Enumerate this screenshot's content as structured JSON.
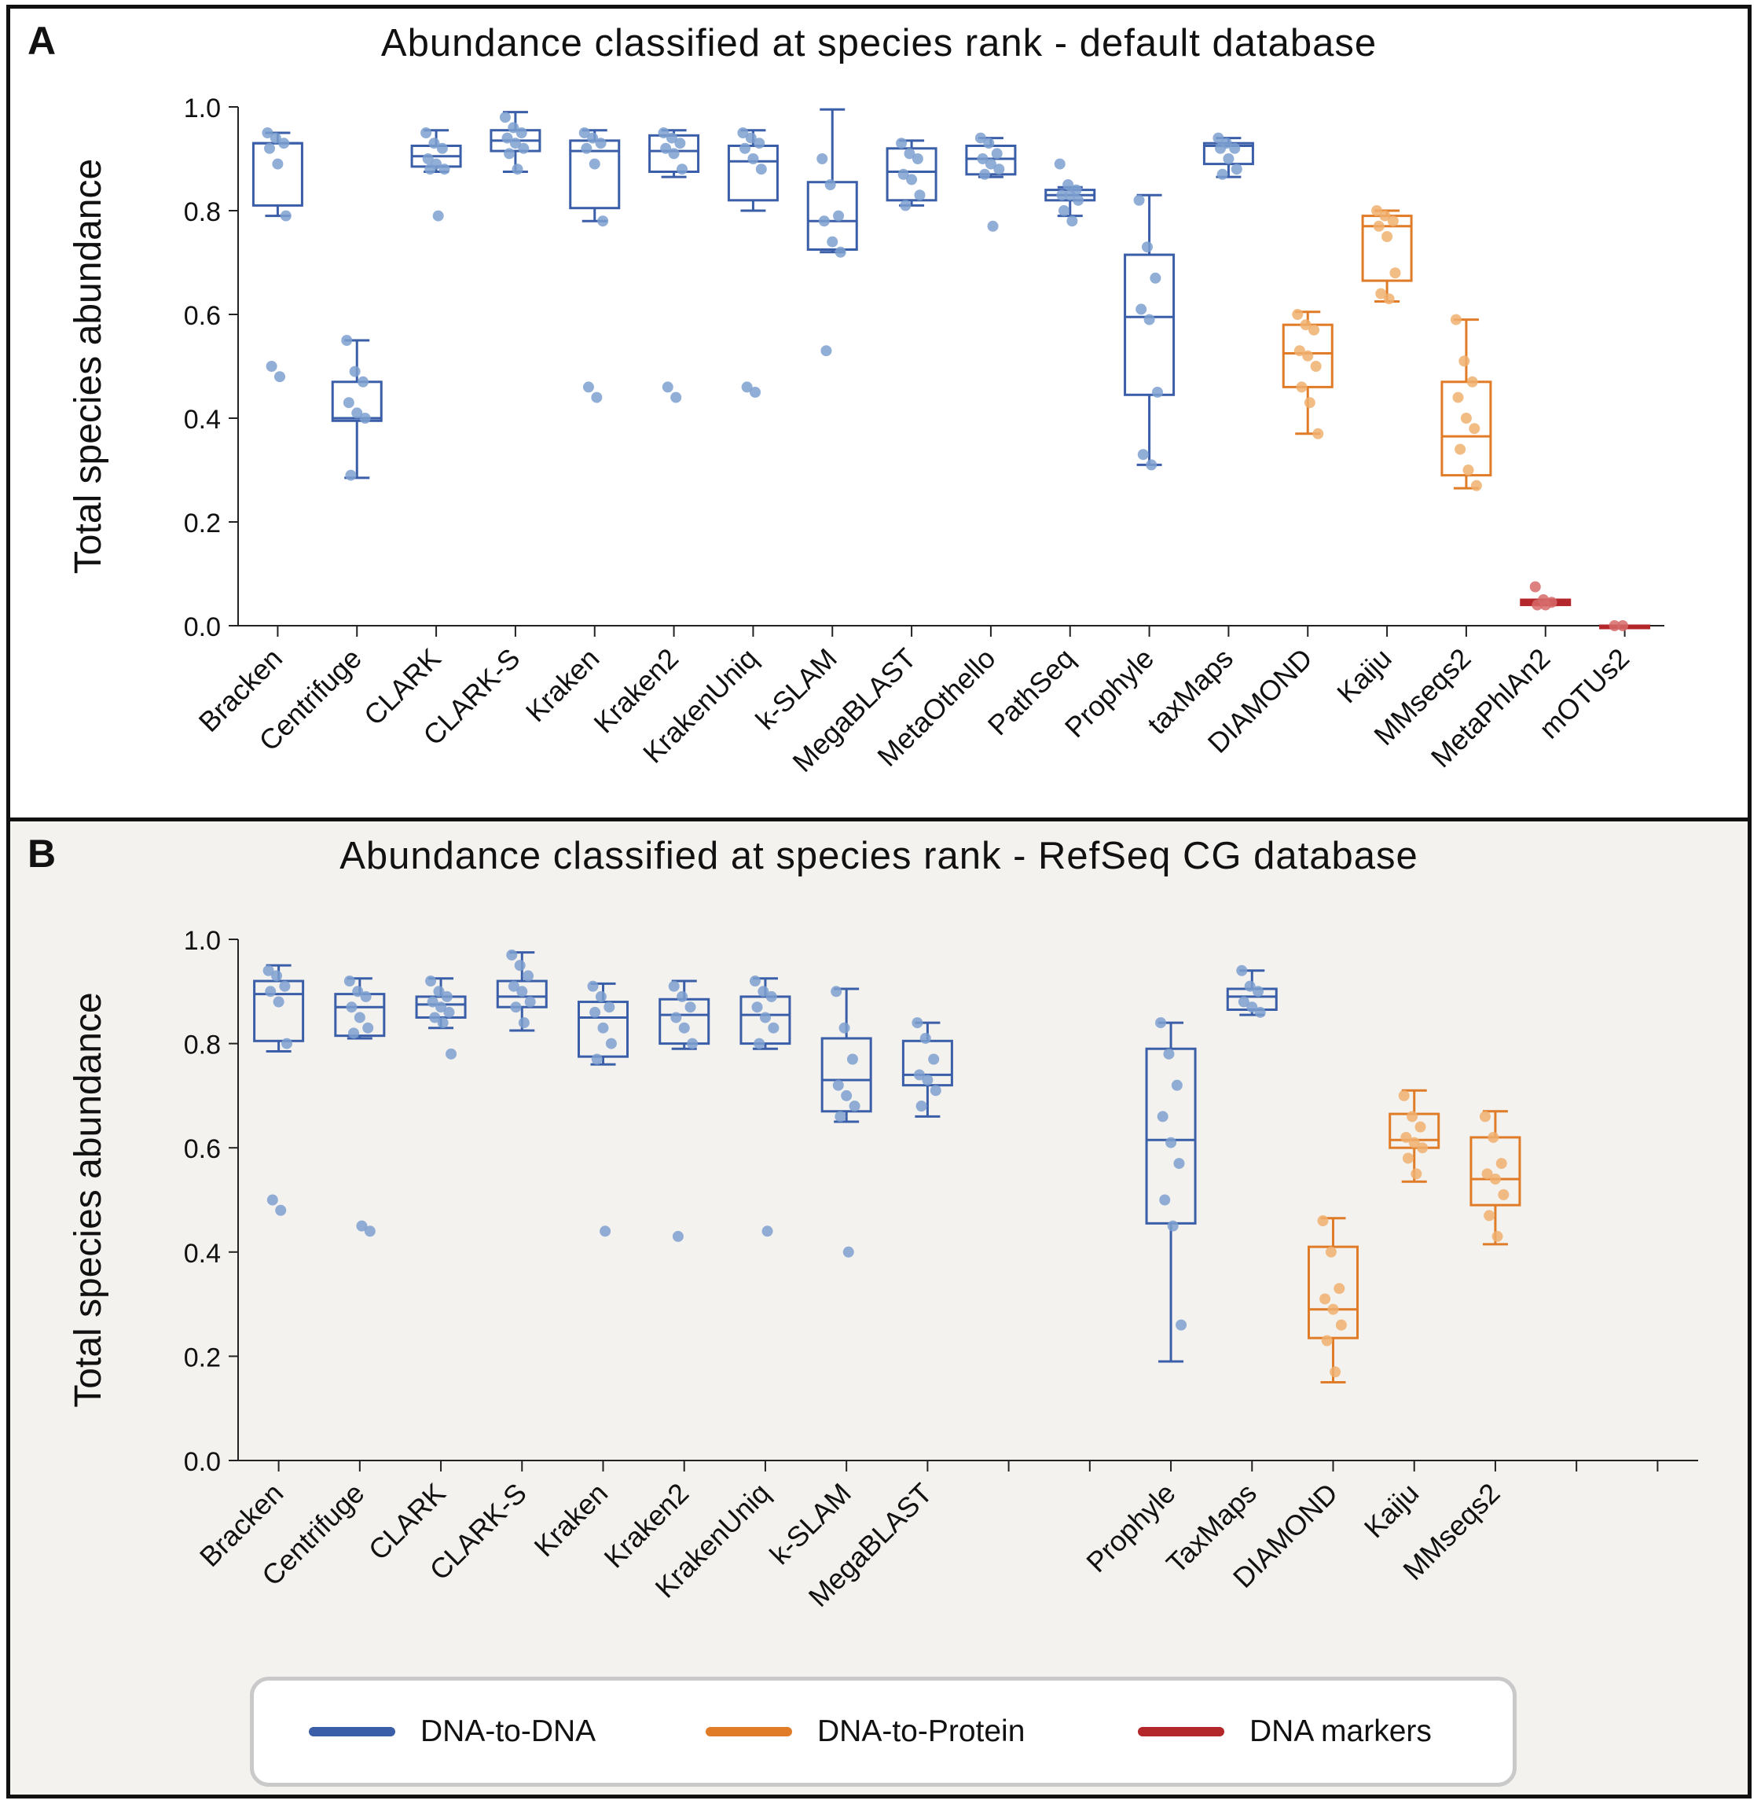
{
  "panel_a": {
    "letter": "A",
    "title": "Abundance classified at species rank - default database"
  },
  "panel_b": {
    "letter": "B",
    "title": "Abundance classified at species rank - RefSeq CG database"
  },
  "legend": {
    "items": [
      {
        "label": "DNA-to-DNA",
        "color": "#3a5ea8"
      },
      {
        "label": "DNA-to-Protein",
        "color": "#e07b27"
      },
      {
        "label": "DNA markers",
        "color": "#b3262a"
      }
    ]
  },
  "colors": {
    "dna": "#3a5ea8",
    "protein": "#e07b27",
    "markers": "#b3262a",
    "dna_points": "#7ea0d0",
    "protein_points": "#f0b070",
    "markers_points": "#d66a6a"
  },
  "chart_data": [
    {
      "type": "box",
      "title": "Abundance classified at species rank - default database",
      "ylabel": "Total species abundance",
      "ylim": [
        0,
        1.0
      ],
      "yticks": [
        "0.0",
        "0.2",
        "0.4",
        "0.6",
        "0.8",
        "1.0"
      ],
      "categories": [
        "Bracken",
        "Centrifuge",
        "CLARK",
        "CLARK-S",
        "Kraken",
        "Kraken2",
        "KrakenUniq",
        "k-SLAM",
        "MegaBLAST",
        "MetaOthello",
        "PathSeq",
        "Prophyle",
        "taxMaps",
        "DIAMOND",
        "Kaiju",
        "MMseqs2",
        "MetaPhlAn2",
        "mOTUs2"
      ],
      "groups": [
        "dna",
        "dna",
        "dna",
        "dna",
        "dna",
        "dna",
        "dna",
        "dna",
        "dna",
        "dna",
        "dna",
        "dna",
        "dna",
        "protein",
        "protein",
        "protein",
        "markers",
        "markers"
      ],
      "boxes": [
        {
          "whislo": 0.79,
          "q1": 0.81,
          "med": 0.93,
          "q3": 0.93,
          "whishi": 0.95
        },
        {
          "whislo": 0.285,
          "q1": 0.395,
          "med": 0.4,
          "q3": 0.47,
          "whishi": 0.55
        },
        {
          "whislo": 0.875,
          "q1": 0.885,
          "med": 0.905,
          "q3": 0.925,
          "whishi": 0.955
        },
        {
          "whislo": 0.875,
          "q1": 0.915,
          "med": 0.935,
          "q3": 0.955,
          "whishi": 0.99
        },
        {
          "whislo": 0.78,
          "q1": 0.805,
          "med": 0.915,
          "q3": 0.935,
          "whishi": 0.955
        },
        {
          "whislo": 0.865,
          "q1": 0.875,
          "med": 0.915,
          "q3": 0.945,
          "whishi": 0.955
        },
        {
          "whislo": 0.8,
          "q1": 0.82,
          "med": 0.895,
          "q3": 0.925,
          "whishi": 0.955
        },
        {
          "whislo": 0.72,
          "q1": 0.725,
          "med": 0.78,
          "q3": 0.855,
          "whishi": 0.995
        },
        {
          "whislo": 0.81,
          "q1": 0.82,
          "med": 0.875,
          "q3": 0.92,
          "whishi": 0.935
        },
        {
          "whislo": 0.865,
          "q1": 0.87,
          "med": 0.9,
          "q3": 0.925,
          "whishi": 0.94
        },
        {
          "whislo": 0.79,
          "q1": 0.82,
          "med": 0.83,
          "q3": 0.84,
          "whishi": 0.845
        },
        {
          "whislo": 0.31,
          "q1": 0.445,
          "med": 0.595,
          "q3": 0.715,
          "whishi": 0.83
        },
        {
          "whislo": 0.865,
          "q1": 0.89,
          "med": 0.925,
          "q3": 0.93,
          "whishi": 0.94
        },
        {
          "whislo": 0.37,
          "q1": 0.46,
          "med": 0.525,
          "q3": 0.58,
          "whishi": 0.605
        },
        {
          "whislo": 0.625,
          "q1": 0.665,
          "med": 0.77,
          "q3": 0.79,
          "whishi": 0.8
        },
        {
          "whislo": 0.265,
          "q1": 0.29,
          "med": 0.365,
          "q3": 0.47,
          "whishi": 0.59
        },
        {
          "whislo": 0.04,
          "q1": 0.04,
          "med": 0.045,
          "q3": 0.05,
          "whishi": 0.05
        },
        {
          "whislo": 0.0,
          "q1": 0.0,
          "med": 0.0,
          "q3": 0.0,
          "whishi": 0.0
        }
      ],
      "points": [
        [
          0.95,
          0.94,
          0.93,
          0.92,
          0.89,
          0.79,
          0.5,
          0.48
        ],
        [
          0.55,
          0.49,
          0.47,
          0.43,
          0.41,
          0.4,
          0.29
        ],
        [
          0.95,
          0.93,
          0.92,
          0.9,
          0.89,
          0.88,
          0.88,
          0.79
        ],
        [
          0.98,
          0.96,
          0.95,
          0.94,
          0.93,
          0.92,
          0.91,
          0.88
        ],
        [
          0.95,
          0.94,
          0.93,
          0.92,
          0.89,
          0.78,
          0.46,
          0.44
        ],
        [
          0.95,
          0.94,
          0.93,
          0.92,
          0.91,
          0.88,
          0.46,
          0.44
        ],
        [
          0.95,
          0.94,
          0.93,
          0.92,
          0.9,
          0.88,
          0.46,
          0.45
        ],
        [
          0.9,
          0.85,
          0.79,
          0.78,
          0.74,
          0.72,
          0.53
        ],
        [
          0.93,
          0.91,
          0.9,
          0.87,
          0.86,
          0.83,
          0.81
        ],
        [
          0.94,
          0.93,
          0.91,
          0.9,
          0.89,
          0.88,
          0.87,
          0.77
        ],
        [
          0.89,
          0.85,
          0.84,
          0.83,
          0.83,
          0.82,
          0.8,
          0.78
        ],
        [
          0.82,
          0.73,
          0.67,
          0.61,
          0.59,
          0.45,
          0.33,
          0.31
        ],
        [
          0.94,
          0.93,
          0.92,
          0.92,
          0.9,
          0.88,
          0.87
        ],
        [
          0.6,
          0.58,
          0.57,
          0.53,
          0.52,
          0.5,
          0.46,
          0.43,
          0.37
        ],
        [
          0.8,
          0.79,
          0.78,
          0.77,
          0.75,
          0.68,
          0.64,
          0.63
        ],
        [
          0.59,
          0.51,
          0.47,
          0.44,
          0.4,
          0.38,
          0.34,
          0.3,
          0.27
        ],
        [
          0.075,
          0.05,
          0.045,
          0.04,
          0.04
        ],
        [
          0.0,
          0.0
        ]
      ]
    },
    {
      "type": "box",
      "title": "Abundance classified at species rank - RefSeq CG database",
      "ylabel": "Total species abundance",
      "ylim": [
        0,
        1.0
      ],
      "yticks": [
        "0.0",
        "0.2",
        "0.4",
        "0.6",
        "0.8",
        "1.0"
      ],
      "tick_count": 18,
      "categories": [
        "Bracken",
        "Centrifuge",
        "CLARK",
        "CLARK-S",
        "Kraken",
        "Kraken2",
        "KrakenUniq",
        "k-SLAM",
        "MegaBLAST",
        "",
        "",
        "Prophyle",
        "TaxMaps",
        "DIAMOND",
        "Kaiju",
        "MMseqs2",
        "",
        ""
      ],
      "groups": [
        "dna",
        "dna",
        "dna",
        "dna",
        "dna",
        "dna",
        "dna",
        "dna",
        "dna",
        "",
        "",
        "dna",
        "dna",
        "protein",
        "protein",
        "protein",
        "",
        ""
      ],
      "boxes": [
        {
          "whislo": 0.785,
          "q1": 0.805,
          "med": 0.895,
          "q3": 0.92,
          "whishi": 0.95
        },
        {
          "whislo": 0.81,
          "q1": 0.815,
          "med": 0.87,
          "q3": 0.895,
          "whishi": 0.925
        },
        {
          "whislo": 0.83,
          "q1": 0.85,
          "med": 0.875,
          "q3": 0.89,
          "whishi": 0.925
        },
        {
          "whislo": 0.825,
          "q1": 0.87,
          "med": 0.89,
          "q3": 0.92,
          "whishi": 0.975
        },
        {
          "whislo": 0.76,
          "q1": 0.775,
          "med": 0.85,
          "q3": 0.88,
          "whishi": 0.915
        },
        {
          "whislo": 0.79,
          "q1": 0.8,
          "med": 0.855,
          "q3": 0.885,
          "whishi": 0.92
        },
        {
          "whislo": 0.79,
          "q1": 0.8,
          "med": 0.855,
          "q3": 0.89,
          "whishi": 0.925
        },
        {
          "whislo": 0.65,
          "q1": 0.67,
          "med": 0.73,
          "q3": 0.81,
          "whishi": 0.905
        },
        {
          "whislo": 0.66,
          "q1": 0.72,
          "med": 0.74,
          "q3": 0.805,
          "whishi": 0.84
        },
        null,
        null,
        {
          "whislo": 0.19,
          "q1": 0.455,
          "med": 0.615,
          "q3": 0.79,
          "whishi": 0.84
        },
        {
          "whislo": 0.855,
          "q1": 0.865,
          "med": 0.89,
          "q3": 0.905,
          "whishi": 0.94
        },
        {
          "whislo": 0.15,
          "q1": 0.235,
          "med": 0.29,
          "q3": 0.41,
          "whishi": 0.465
        },
        {
          "whislo": 0.535,
          "q1": 0.6,
          "med": 0.615,
          "q3": 0.665,
          "whishi": 0.71
        },
        {
          "whislo": 0.415,
          "q1": 0.49,
          "med": 0.54,
          "q3": 0.62,
          "whishi": 0.67
        },
        null,
        null
      ],
      "points": [
        [
          0.94,
          0.93,
          0.91,
          0.9,
          0.88,
          0.8,
          0.5,
          0.48
        ],
        [
          0.92,
          0.9,
          0.89,
          0.87,
          0.85,
          0.83,
          0.82,
          0.45,
          0.44
        ],
        [
          0.92,
          0.9,
          0.89,
          0.88,
          0.87,
          0.86,
          0.85,
          0.84,
          0.78
        ],
        [
          0.97,
          0.95,
          0.93,
          0.91,
          0.9,
          0.88,
          0.87,
          0.84
        ],
        [
          0.91,
          0.89,
          0.87,
          0.86,
          0.83,
          0.8,
          0.77,
          0.44
        ],
        [
          0.91,
          0.89,
          0.87,
          0.85,
          0.83,
          0.8,
          0.43
        ],
        [
          0.92,
          0.9,
          0.89,
          0.87,
          0.85,
          0.83,
          0.8,
          0.44
        ],
        [
          0.9,
          0.83,
          0.77,
          0.72,
          0.7,
          0.68,
          0.66,
          0.4
        ],
        [
          0.84,
          0.81,
          0.77,
          0.74,
          0.73,
          0.71,
          0.68
        ],
        [],
        [],
        [
          0.84,
          0.78,
          0.72,
          0.66,
          0.61,
          0.57,
          0.5,
          0.45,
          0.26
        ],
        [
          0.94,
          0.91,
          0.9,
          0.88,
          0.87,
          0.86
        ],
        [
          0.46,
          0.4,
          0.33,
          0.31,
          0.29,
          0.26,
          0.23,
          0.17
        ],
        [
          0.7,
          0.66,
          0.64,
          0.62,
          0.61,
          0.6,
          0.58,
          0.55
        ],
        [
          0.66,
          0.62,
          0.57,
          0.55,
          0.54,
          0.51,
          0.47,
          0.43
        ]
      ]
    }
  ]
}
